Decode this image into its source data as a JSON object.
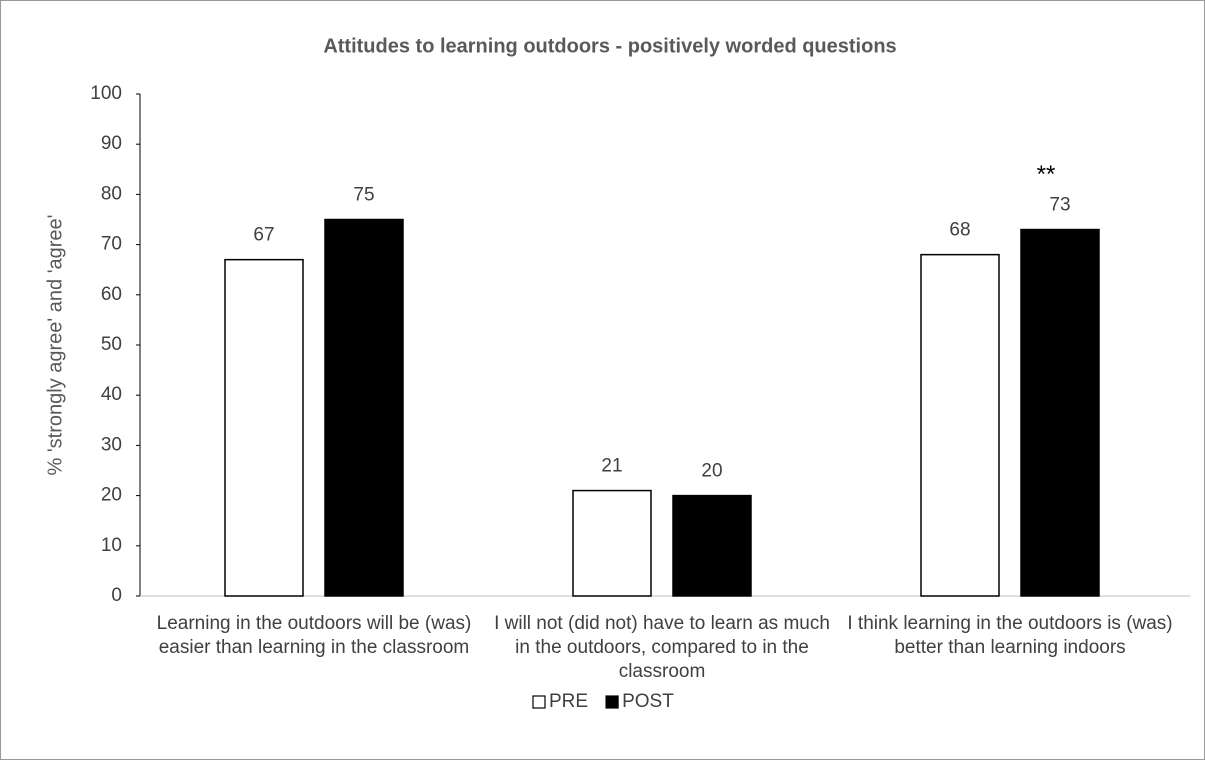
{
  "chart_data": {
    "type": "bar",
    "title": "Attitudes to learning outdoors - positively worded questions",
    "y_label": "% 'strongly agree' and 'agree'",
    "categories": [
      "Learning in the outdoors will be (was) easier than learning in the classroom",
      "I will not (did not) have to learn as much in the outdoors, compared to in the classroom",
      "I think learning in the outdoors is (was) better than learning indoors"
    ],
    "series": [
      {
        "name": "PRE",
        "color": "#ffffff",
        "values": [
          67,
          21,
          68
        ]
      },
      {
        "name": "POST",
        "color": "#000000",
        "values": [
          75,
          20,
          73
        ]
      }
    ],
    "annotation": "**",
    "ylim": [
      0,
      100
    ],
    "yticks": [
      0,
      10,
      20,
      30,
      40,
      50,
      60,
      70,
      80,
      90,
      100
    ],
    "grid": false,
    "legend": "bottom"
  }
}
